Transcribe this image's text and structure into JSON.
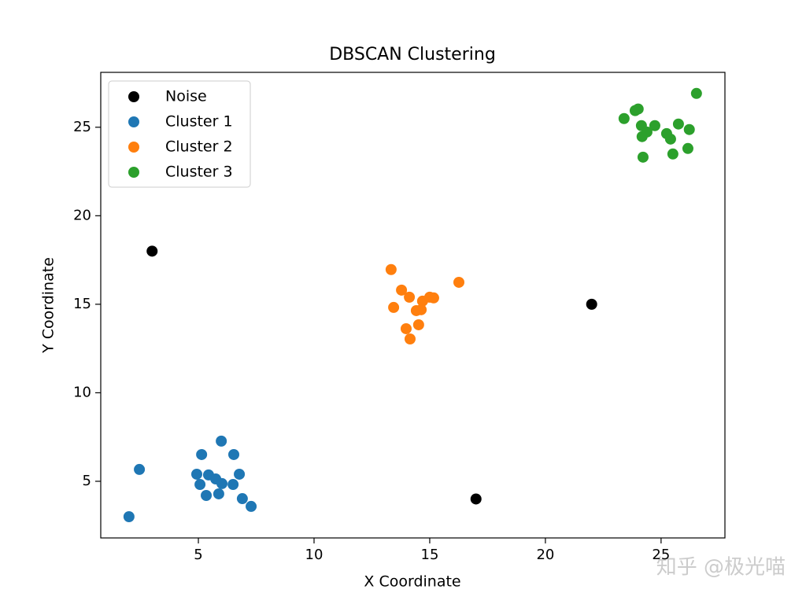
{
  "chart_data": {
    "type": "scatter",
    "title": "DBSCAN Clustering",
    "x_label": "X Coordinate",
    "y_label": "Y Coordinate",
    "xlim": [
      0.78,
      27.76
    ],
    "ylim": [
      1.8,
      28.1
    ],
    "xticks": [
      5,
      10,
      15,
      20,
      25
    ],
    "yticks": [
      5,
      10,
      15,
      20,
      25
    ],
    "legend": "upper-left",
    "watermark": "知乎 @极光喵",
    "series": [
      {
        "name": "Noise",
        "color": "#000000",
        "x": [
          3,
          22,
          17
        ],
        "values": [
          18,
          15,
          4
        ]
      },
      {
        "name": "Cluster 1",
        "color": "#1f77b4",
        "x": [
          2.45,
          2.0,
          5.14,
          5.99,
          6.53,
          4.93,
          5.44,
          5.07,
          5.75,
          6.02,
          6.77,
          6.5,
          5.34,
          5.88,
          6.9,
          7.28
        ],
        "values": [
          5.67,
          3.0,
          6.51,
          7.27,
          6.51,
          5.4,
          5.36,
          4.82,
          5.13,
          4.87,
          5.4,
          4.82,
          4.2,
          4.29,
          4.02,
          3.58
        ]
      },
      {
        "name": "Cluster 2",
        "color": "#ff7f0e",
        "x": [
          13.33,
          16.26,
          13.78,
          14.12,
          13.44,
          14.69,
          15.0,
          15.17,
          14.42,
          14.63,
          13.98,
          14.52,
          14.15
        ],
        "values": [
          16.96,
          16.24,
          15.8,
          15.4,
          14.82,
          15.18,
          15.4,
          15.36,
          14.64,
          14.69,
          13.62,
          13.84,
          13.04
        ]
      },
      {
        "name": "Cluster 3",
        "color": "#2ca02c",
        "x": [
          26.53,
          23.88,
          24.01,
          23.4,
          24.15,
          24.73,
          25.75,
          26.22,
          24.39,
          25.24,
          25.41,
          24.18,
          26.16,
          25.51,
          24.22
        ],
        "values": [
          26.91,
          25.94,
          26.03,
          25.49,
          25.09,
          25.09,
          25.18,
          24.87,
          24.73,
          24.64,
          24.33,
          24.47,
          23.8,
          23.49,
          23.31
        ]
      }
    ]
  }
}
